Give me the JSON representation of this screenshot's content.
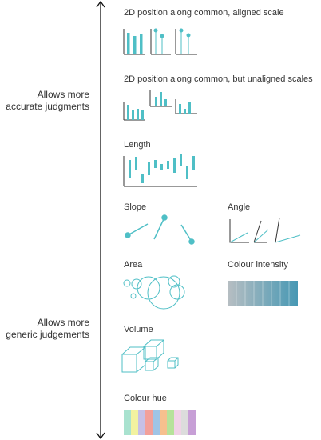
{
  "side_labels": {
    "top": [
      "Allows more",
      "accurate judgments"
    ],
    "bottom": [
      "Allows more",
      "generic judgements"
    ]
  },
  "sections": {
    "position_aligned": "2D position along common, aligned scale",
    "position_unaligned": "2D position along common, but unaligned scales",
    "length": "Length",
    "slope": "Slope",
    "angle": "Angle",
    "area": "Area",
    "colour_intensity": "Colour intensity",
    "volume": "Volume",
    "colour_hue": "Colour hue"
  },
  "colors": {
    "accent": "#4fbfc6",
    "axis": "#333333",
    "intensity_from": "#b4bcc0",
    "intensity_to": "#4a9ab5",
    "hues": [
      "#a9e2cf",
      "#f2f2a0",
      "#c6c0e6",
      "#f2a09a",
      "#9fc4e6",
      "#f6c08e",
      "#b6e29a",
      "#f0d3e6",
      "#dcdcdc",
      "#c79fd6"
    ]
  }
}
